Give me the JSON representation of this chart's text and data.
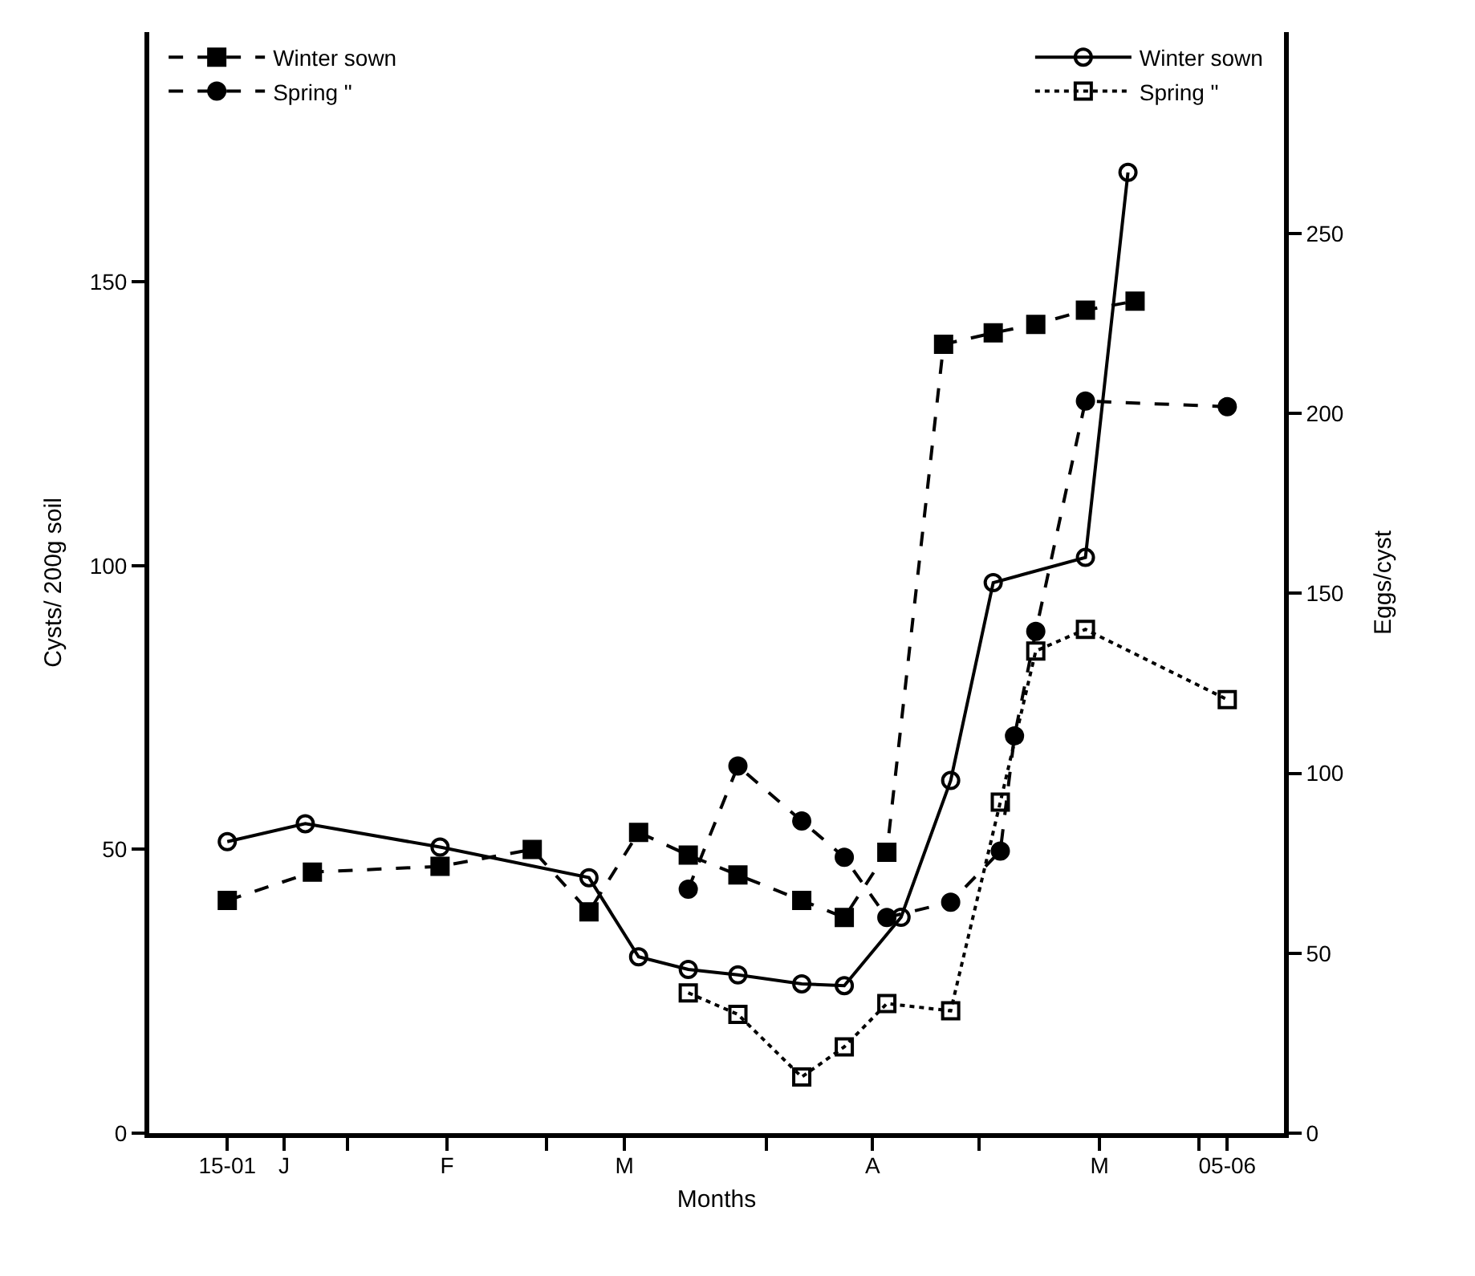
{
  "chart_data": {
    "type": "line",
    "xlabel": "Months",
    "ylabel": "Cysts/ 200g soil",
    "y2label": "Eggs/cyst",
    "xlim": [
      "--01-04",
      "--06-13"
    ],
    "xticks": [
      {
        "value": "--01-15",
        "label": "15-01"
      },
      {
        "value": "--01-23",
        "label": "J"
      },
      {
        "value": "--02-01",
        "label": null
      },
      {
        "value": "--02-15",
        "label": "F"
      },
      {
        "value": "--03-01",
        "label": null
      },
      {
        "value": "--03-12",
        "label": "M"
      },
      {
        "value": "--04-01",
        "label": null
      },
      {
        "value": "--04-16",
        "label": "A"
      },
      {
        "value": "--05-01",
        "label": null
      },
      {
        "value": "--05-18",
        "label": "M"
      },
      {
        "value": "--06-01",
        "label": null
      },
      {
        "value": "--06-05",
        "label": "05-06"
      }
    ],
    "ylim": [
      0,
      194
    ],
    "yticks": [
      0,
      50,
      100,
      150
    ],
    "y2lim": [
      0,
      306
    ],
    "y2ticks": [
      0,
      50,
      100,
      150,
      200,
      250
    ],
    "legend": "top",
    "series": [
      {
        "name": "Spring \"",
        "color": "#000000",
        "marker": "square",
        "line_style": "dotted",
        "axis": "y2",
        "x": [
          "--03-21",
          "--03-28",
          "--04-06",
          "--04-12",
          "--04-18",
          "--04-27",
          "--05-04",
          "--05-09",
          "--05-16",
          "--06-05"
        ],
        "values": [
          39,
          33,
          15.6,
          24,
          36,
          34,
          92,
          134,
          140,
          120.5
        ]
      },
      {
        "name": "Spring \"",
        "color": "#000000",
        "marker": "circle",
        "line_style": "dashed",
        "x": [
          "--03-21",
          "--03-28",
          "--04-06",
          "--04-12",
          "--04-18",
          "--04-27",
          "--05-04",
          "--05-06",
          "--05-09",
          "--05-16",
          "--06-05"
        ],
        "values": [
          43,
          64.7,
          55,
          48.6,
          38,
          40.7,
          49.7,
          70,
          88.4,
          129,
          128
        ]
      },
      {
        "name": "Winter sown",
        "color": "#000000",
        "marker": "square",
        "line_style": "dashed",
        "x": [
          "--01-15",
          "--01-27",
          "--02-14",
          "--02-27",
          "--03-07",
          "--03-14",
          "--03-21",
          "--03-28",
          "--04-06",
          "--04-12",
          "--04-18",
          "--04-26",
          "--05-03",
          "--05-09",
          "--05-16",
          "--05-23"
        ],
        "values": [
          41,
          46,
          47,
          50,
          39,
          53,
          49,
          45.5,
          41,
          38,
          49.5,
          139,
          141,
          142.5,
          145,
          146.6
        ]
      },
      {
        "name": "Winter sown",
        "color": "#000000",
        "marker": "circle",
        "line_style": "solid",
        "axis": "y2",
        "x": [
          "--01-15",
          "--01-26",
          "--02-14",
          "--03-07",
          "--03-14",
          "--03-21",
          "--03-28",
          "--04-06",
          "--04-12",
          "--04-20",
          "--04-27",
          "--05-03",
          "--05-16",
          "--05-22"
        ],
        "values": [
          81,
          86,
          79.5,
          71,
          49,
          45.5,
          44,
          41.5,
          41,
          60,
          98,
          153,
          160,
          267
        ]
      }
    ]
  }
}
